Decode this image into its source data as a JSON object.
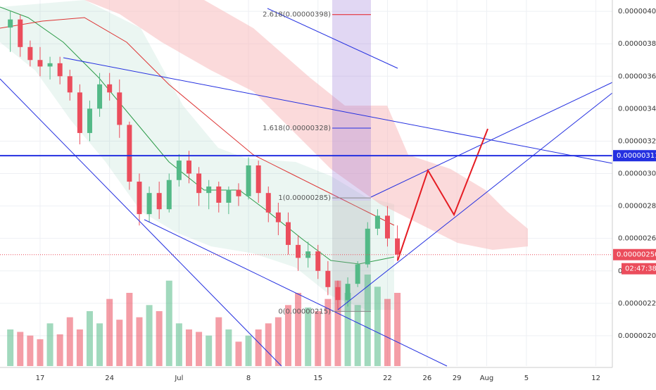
{
  "chart_data": {
    "type": "candlestick",
    "xlim": [
      12.96,
      74.66
    ],
    "ylim": [
      1.813e-06,
      4.07e-06
    ],
    "xticks": [
      {
        "value": 17,
        "label": "17"
      },
      {
        "value": 24,
        "label": "24"
      },
      {
        "value": 31,
        "label": "Jul"
      },
      {
        "value": 38,
        "label": "8"
      },
      {
        "value": 45,
        "label": "15"
      },
      {
        "value": 52,
        "label": "22"
      },
      {
        "value": 56,
        "label": "26"
      },
      {
        "value": 59,
        "label": "29"
      },
      {
        "value": 62,
        "label": "Aug"
      },
      {
        "value": 66,
        "label": "5"
      },
      {
        "value": 73,
        "label": "12"
      }
    ],
    "yticks": [
      {
        "value": 2e-06,
        "label": "0.00000200"
      },
      {
        "value": 2.2e-06,
        "label": "0.00000220"
      },
      {
        "value": 2.4e-06,
        "label": "0.00000240"
      },
      {
        "value": 2.6e-06,
        "label": "0.00000260"
      },
      {
        "value": 2.8e-06,
        "label": "0.00000280"
      },
      {
        "value": 3e-06,
        "label": "0.00000300"
      },
      {
        "value": 3.2e-06,
        "label": "0.00000320"
      },
      {
        "value": 3.4e-06,
        "label": "0.00000340"
      },
      {
        "value": 3.6e-06,
        "label": "0.00000360"
      },
      {
        "value": 3.8e-06,
        "label": "0.00000380"
      },
      {
        "value": 4e-06,
        "label": "0.00000400"
      }
    ],
    "grid": true,
    "up_color": "#53b987",
    "down_color": "#eb4d5c",
    "candles": {
      "x": [
        14,
        15,
        16,
        17,
        18,
        19,
        20,
        21,
        22,
        23,
        24,
        25,
        26,
        27,
        28,
        29,
        30,
        31,
        32,
        33,
        34,
        35,
        36,
        37,
        38,
        39,
        40,
        41,
        42,
        43,
        44,
        45,
        46,
        47,
        48,
        49,
        50,
        51,
        52,
        53
      ],
      "open": [
        3.9e-06,
        3.95e-06,
        3.78e-06,
        3.7e-06,
        3.66e-06,
        3.68e-06,
        3.6e-06,
        3.5e-06,
        3.25e-06,
        3.4e-06,
        3.55e-06,
        3.5e-06,
        3.3e-06,
        2.95e-06,
        2.75e-06,
        2.88e-06,
        2.78e-06,
        2.96e-06,
        3.08e-06,
        3e-06,
        2.88e-06,
        2.92e-06,
        2.82e-06,
        2.9e-06,
        2.86e-06,
        3.05e-06,
        2.88e-06,
        2.76e-06,
        2.7e-06,
        2.56e-06,
        2.48e-06,
        2.52e-06,
        2.4e-06,
        2.3e-06,
        2.22e-06,
        2.32e-06,
        2.44e-06,
        2.66e-06,
        2.74e-06,
        2.6e-06
      ],
      "high": [
        4e-06,
        3.98e-06,
        3.82e-06,
        3.78e-06,
        3.72e-06,
        3.72e-06,
        3.64e-06,
        3.55e-06,
        3.45e-06,
        3.62e-06,
        3.62e-06,
        3.58e-06,
        3.32e-06,
        3e-06,
        2.92e-06,
        2.95e-06,
        3e-06,
        3.12e-06,
        3.14e-06,
        3.04e-06,
        2.96e-06,
        2.95e-06,
        2.92e-06,
        2.94e-06,
        3.1e-06,
        3.08e-06,
        2.92e-06,
        2.82e-06,
        2.76e-06,
        2.62e-06,
        2.58e-06,
        2.56e-06,
        2.46e-06,
        2.34e-06,
        2.36e-06,
        2.46e-06,
        2.7e-06,
        2.78e-06,
        2.8e-06,
        2.68e-06
      ],
      "low": [
        3.75e-06,
        3.72e-06,
        3.66e-06,
        3.6e-06,
        3.58e-06,
        3.55e-06,
        3.45e-06,
        3.18e-06,
        3.2e-06,
        3.35e-06,
        3.45e-06,
        3.22e-06,
        2.9e-06,
        2.68e-06,
        2.7e-06,
        2.72e-06,
        2.76e-06,
        2.92e-06,
        2.94e-06,
        2.8e-06,
        2.78e-06,
        2.76e-06,
        2.75e-06,
        2.8e-06,
        2.84e-06,
        2.82e-06,
        2.7e-06,
        2.62e-06,
        2.5e-06,
        2.4e-06,
        2.42e-06,
        2.35e-06,
        2.25e-06,
        2.16e-06,
        2.18e-06,
        2.3e-06,
        2.42e-06,
        2.62e-06,
        2.55e-06,
        2.46e-06
      ],
      "close": [
        3.95e-06,
        3.78e-06,
        3.7e-06,
        3.66e-06,
        3.68e-06,
        3.6e-06,
        3.5e-06,
        3.25e-06,
        3.4e-06,
        3.55e-06,
        3.5e-06,
        3.3e-06,
        2.95e-06,
        2.75e-06,
        2.88e-06,
        2.78e-06,
        2.96e-06,
        3.08e-06,
        3e-06,
        2.88e-06,
        2.92e-06,
        2.82e-06,
        2.9e-06,
        2.86e-06,
        3.05e-06,
        2.88e-06,
        2.76e-06,
        2.7e-06,
        2.56e-06,
        2.48e-06,
        2.52e-06,
        2.4e-06,
        2.3e-06,
        2.22e-06,
        2.32e-06,
        2.44e-06,
        2.66e-06,
        2.74e-06,
        2.6e-06,
        2.5e-06
      ]
    },
    "volume": [
      30,
      28,
      25,
      22,
      35,
      26,
      40,
      30,
      45,
      35,
      55,
      38,
      60,
      40,
      50,
      45,
      70,
      35,
      30,
      28,
      25,
      40,
      30,
      20,
      25,
      30,
      35,
      40,
      50,
      60,
      48,
      45,
      55,
      70,
      60,
      50,
      75,
      65,
      55,
      60
    ],
    "fib_levels": [
      {
        "value": 3.98e-06,
        "label": "2.618(0.00000398)"
      },
      {
        "value": 3.28e-06,
        "label": "1.618(0.00000328)"
      },
      {
        "value": 2.85e-06,
        "label": "1(0.00000285)"
      },
      {
        "value": 2.15e-06,
        "label": "0(0.00000215)"
      }
    ],
    "price_lines": [
      {
        "value": 3.11e-06,
        "label": "0.00000311",
        "color": "#2430e0",
        "style": "solid"
      },
      {
        "value": 2.5e-06,
        "label": "0.00000250",
        "color": "#eb4d5c",
        "style": "dotted"
      }
    ],
    "countdown": "02:47:38"
  }
}
